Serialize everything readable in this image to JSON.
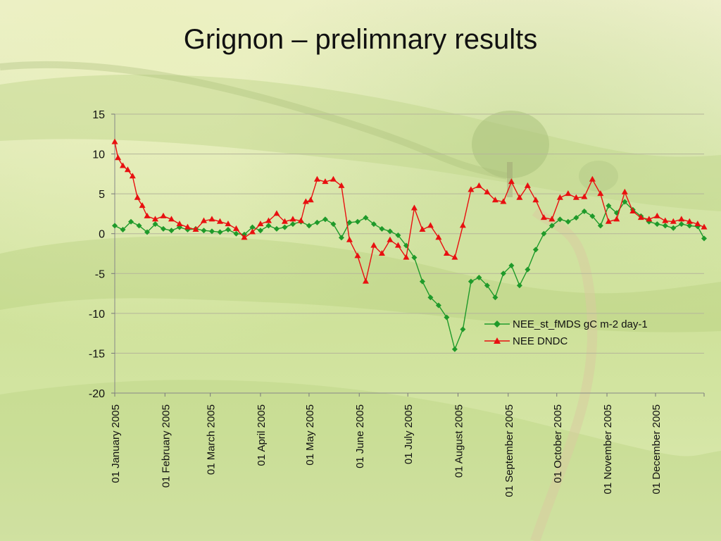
{
  "title": "Grignon – prelimnary results",
  "chart_data": {
    "type": "line",
    "x_axis": "date",
    "xlim": [
      "2005-01-01",
      "2005-12-31"
    ],
    "ylim": [
      -20,
      15
    ],
    "y_ticks": [
      15,
      10,
      5,
      0,
      -5,
      -10,
      -15,
      -20
    ],
    "x_ticks": [
      {
        "date": "2005-01-01",
        "label": "01 January 2005"
      },
      {
        "date": "2005-02-01",
        "label": "01 February 2005"
      },
      {
        "date": "2005-03-01",
        "label": "01 March 2005"
      },
      {
        "date": "2005-04-01",
        "label": "01 April 2005"
      },
      {
        "date": "2005-05-01",
        "label": "01 May 2005"
      },
      {
        "date": "2005-06-01",
        "label": "01 June 2005"
      },
      {
        "date": "2005-07-01",
        "label": "01 July 2005"
      },
      {
        "date": "2005-08-01",
        "label": "01 August 2005"
      },
      {
        "date": "2005-09-01",
        "label": "01 September 2005"
      },
      {
        "date": "2005-10-01",
        "label": "01 October 2005"
      },
      {
        "date": "2005-11-01",
        "label": "01 November 2005"
      },
      {
        "date": "2005-12-01",
        "label": "01 December 2005"
      }
    ],
    "grid": "horizontal",
    "legend_position": "right",
    "series": [
      {
        "name": "NEE_st_fMDS gC m-2 day-1",
        "color": "#1f9a2a",
        "marker": "diamond",
        "x": [
          "2005-01-01",
          "2005-01-06",
          "2005-01-11",
          "2005-01-16",
          "2005-01-21",
          "2005-01-26",
          "2005-01-31",
          "2005-02-05",
          "2005-02-10",
          "2005-02-15",
          "2005-02-20",
          "2005-02-25",
          "2005-03-02",
          "2005-03-07",
          "2005-03-12",
          "2005-03-17",
          "2005-03-22",
          "2005-03-27",
          "2005-04-01",
          "2005-04-06",
          "2005-04-11",
          "2005-04-16",
          "2005-04-21",
          "2005-04-26",
          "2005-05-01",
          "2005-05-06",
          "2005-05-11",
          "2005-05-16",
          "2005-05-21",
          "2005-05-26",
          "2005-05-31",
          "2005-06-05",
          "2005-06-10",
          "2005-06-15",
          "2005-06-20",
          "2005-06-25",
          "2005-06-30",
          "2005-07-05",
          "2005-07-10",
          "2005-07-15",
          "2005-07-20",
          "2005-07-25",
          "2005-07-30",
          "2005-08-04",
          "2005-08-09",
          "2005-08-14",
          "2005-08-19",
          "2005-08-24",
          "2005-08-29",
          "2005-09-03",
          "2005-09-08",
          "2005-09-13",
          "2005-09-18",
          "2005-09-23",
          "2005-09-28",
          "2005-10-03",
          "2005-10-08",
          "2005-10-13",
          "2005-10-18",
          "2005-10-23",
          "2005-10-28",
          "2005-11-02",
          "2005-11-07",
          "2005-11-12",
          "2005-11-17",
          "2005-11-22",
          "2005-11-27",
          "2005-12-02",
          "2005-12-07",
          "2005-12-12",
          "2005-12-17",
          "2005-12-22",
          "2005-12-27",
          "2005-12-31"
        ],
        "y": [
          1.0,
          0.5,
          1.5,
          1.0,
          0.2,
          1.2,
          0.6,
          0.4,
          0.8,
          0.5,
          0.6,
          0.4,
          0.3,
          0.2,
          0.5,
          0.0,
          -0.1,
          0.8,
          0.4,
          1.0,
          0.6,
          0.8,
          1.2,
          1.5,
          1.0,
          1.4,
          1.8,
          1.2,
          -0.5,
          1.4,
          1.5,
          2.0,
          1.2,
          0.6,
          0.3,
          -0.2,
          -1.5,
          -3.0,
          -6.0,
          -8.0,
          -9.0,
          -10.5,
          -14.5,
          -12.0,
          -6.0,
          -5.5,
          -6.5,
          -8.0,
          -5.0,
          -4.0,
          -6.5,
          -4.5,
          -2.0,
          0.0,
          1.0,
          1.8,
          1.5,
          2.0,
          2.8,
          2.2,
          1.0,
          3.5,
          2.6,
          4.0,
          3.0,
          2.2,
          1.5,
          1.2,
          1.0,
          0.7,
          1.2,
          1.0,
          0.9,
          -0.6
        ]
      },
      {
        "name": "NEE DNDC",
        "color": "#e81010",
        "marker": "triangle",
        "x": [
          "2005-01-01",
          "2005-01-03",
          "2005-01-06",
          "2005-01-09",
          "2005-01-12",
          "2005-01-15",
          "2005-01-18",
          "2005-01-21",
          "2005-01-26",
          "2005-01-31",
          "2005-02-05",
          "2005-02-10",
          "2005-02-15",
          "2005-02-20",
          "2005-02-25",
          "2005-03-02",
          "2005-03-07",
          "2005-03-12",
          "2005-03-17",
          "2005-03-22",
          "2005-03-27",
          "2005-04-01",
          "2005-04-06",
          "2005-04-11",
          "2005-04-16",
          "2005-04-21",
          "2005-04-26",
          "2005-04-29",
          "2005-05-02",
          "2005-05-06",
          "2005-05-11",
          "2005-05-16",
          "2005-05-21",
          "2005-05-26",
          "2005-05-31",
          "2005-06-05",
          "2005-06-10",
          "2005-06-15",
          "2005-06-20",
          "2005-06-25",
          "2005-06-30",
          "2005-07-05",
          "2005-07-10",
          "2005-07-15",
          "2005-07-20",
          "2005-07-25",
          "2005-07-30",
          "2005-08-04",
          "2005-08-09",
          "2005-08-14",
          "2005-08-19",
          "2005-08-24",
          "2005-08-29",
          "2005-09-03",
          "2005-09-08",
          "2005-09-13",
          "2005-09-18",
          "2005-09-23",
          "2005-09-28",
          "2005-10-03",
          "2005-10-08",
          "2005-10-13",
          "2005-10-18",
          "2005-10-23",
          "2005-10-28",
          "2005-11-02",
          "2005-11-07",
          "2005-11-12",
          "2005-11-17",
          "2005-11-22",
          "2005-11-27",
          "2005-12-02",
          "2005-12-07",
          "2005-12-12",
          "2005-12-17",
          "2005-12-22",
          "2005-12-27",
          "2005-12-31"
        ],
        "y": [
          11.5,
          9.5,
          8.5,
          8.0,
          7.2,
          4.5,
          3.5,
          2.2,
          1.8,
          2.2,
          1.8,
          1.2,
          0.8,
          0.5,
          1.6,
          1.8,
          1.5,
          1.2,
          0.6,
          -0.5,
          0.2,
          1.2,
          1.6,
          2.5,
          1.5,
          1.8,
          1.6,
          4.0,
          4.2,
          6.8,
          6.5,
          6.8,
          6.0,
          -0.8,
          -2.8,
          -6.0,
          -1.5,
          -2.5,
          -0.8,
          -1.5,
          -3.0,
          3.2,
          0.5,
          1.0,
          -0.5,
          -2.5,
          -3.0,
          1.0,
          5.5,
          6.0,
          5.2,
          4.2,
          4.0,
          6.5,
          4.5,
          6.0,
          4.2,
          2.0,
          1.8,
          4.5,
          5.0,
          4.5,
          4.6,
          6.8,
          5.0,
          1.5,
          1.8,
          5.2,
          2.8,
          2.0,
          1.8,
          2.2,
          1.6,
          1.5,
          1.8,
          1.5,
          1.2,
          0.8
        ]
      }
    ]
  }
}
